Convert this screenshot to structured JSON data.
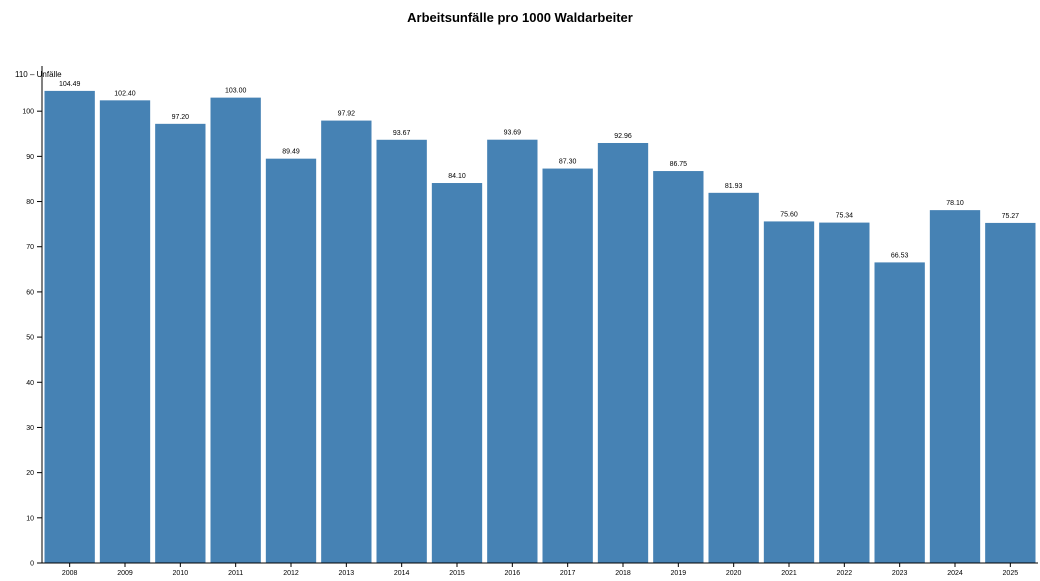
{
  "chart_data": {
    "type": "bar",
    "title": "Arbeitsunfälle pro 1000 Waldarbeiter",
    "ylabel": "110 – Unfälle",
    "xlabel": "",
    "ylim": [
      0,
      110
    ],
    "yticks": [
      0,
      10,
      20,
      30,
      40,
      50,
      60,
      70,
      80,
      90,
      100
    ],
    "categories": [
      "2008",
      "2009",
      "2010",
      "2011",
      "2012",
      "2013",
      "2014",
      "2015",
      "2016",
      "2017",
      "2018",
      "2019",
      "2020",
      "2021",
      "2022",
      "2023",
      "2024",
      "2025"
    ],
    "values": [
      104.49,
      102.4,
      97.2,
      103.0,
      89.49,
      97.92,
      93.67,
      84.1,
      93.69,
      87.3,
      92.96,
      86.75,
      81.93,
      75.6,
      75.34,
      66.53,
      78.1,
      75.27
    ],
    "value_labels": [
      "104.49",
      "102.40",
      "97.20",
      "103.00",
      "89.49",
      "97.92",
      "93.67",
      "84.10",
      "93.69",
      "87.30",
      "92.96",
      "86.75",
      "81.93",
      "75.60",
      "75.34",
      "66.53",
      "78.10",
      "75.27"
    ],
    "bar_color": "#4682b4",
    "grid": false,
    "legend": "none"
  }
}
